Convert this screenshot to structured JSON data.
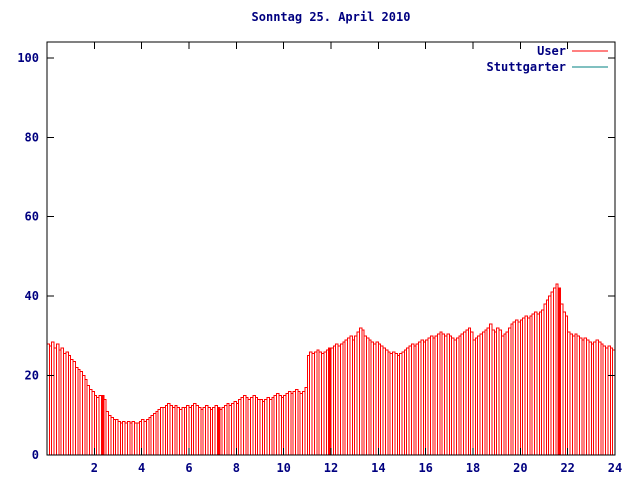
{
  "title": "Sonntag 25. April 2010",
  "colors": {
    "text": "#000080",
    "axis": "#000000",
    "user": "#ff0000",
    "stuttgarter": "#008080",
    "bar_fill": "#ffffff"
  },
  "legend": {
    "entries": [
      {
        "label": "User",
        "color": "#ff0000"
      },
      {
        "label": "Stuttgarter",
        "color": "#008080"
      }
    ],
    "position": "top-right"
  },
  "chart_data": {
    "type": "bar",
    "title": "Sonntag 25. April 2010",
    "xlabel": "",
    "ylabel": "",
    "xlim": [
      0,
      24
    ],
    "ylim": [
      0,
      104
    ],
    "xticks": [
      2,
      4,
      6,
      8,
      10,
      12,
      14,
      16,
      18,
      20,
      22,
      24
    ],
    "yticks": [
      0,
      20,
      40,
      60,
      80,
      100
    ],
    "grid": false,
    "legend_position": "top-right",
    "x_step": 0.1,
    "series": [
      {
        "name": "User",
        "color": "#ff0000",
        "x_start": 0,
        "highlight_indices": [
          23,
          72,
          119,
          216
        ],
        "values": [
          28,
          27.5,
          28.5,
          27,
          28,
          26.5,
          27,
          25.5,
          26,
          25,
          24,
          23.5,
          22,
          21.5,
          21,
          20,
          19,
          17.5,
          16.5,
          16,
          15,
          14.5,
          15,
          15,
          14,
          11,
          10,
          9.5,
          9,
          9,
          8.5,
          8,
          8.5,
          8,
          8.5,
          8,
          8.5,
          8,
          8,
          8.5,
          9,
          8.5,
          9,
          9.5,
          10,
          10.5,
          11,
          11.5,
          12,
          12,
          12.5,
          13,
          12.5,
          12,
          12.5,
          12,
          11.5,
          12,
          12,
          12.5,
          12,
          12.5,
          13,
          12.5,
          12,
          11.5,
          12,
          12.5,
          12,
          11.5,
          12,
          12.5,
          12,
          11.5,
          12,
          12.5,
          13,
          12.5,
          13,
          13.5,
          13,
          14,
          14.5,
          15,
          14.5,
          14,
          14.5,
          15,
          14.5,
          14,
          14,
          13.5,
          14,
          14.5,
          14,
          14.5,
          15,
          15.5,
          15,
          14.5,
          15,
          15.5,
          16,
          15.5,
          16,
          16.5,
          16,
          15.5,
          16,
          17,
          25,
          26,
          25.5,
          26,
          26.5,
          26,
          25.5,
          26,
          26.5,
          27,
          27,
          27.5,
          28,
          27.5,
          28,
          28.5,
          29,
          29.5,
          30,
          29,
          30,
          31,
          32,
          31.5,
          30,
          29.5,
          29,
          28.5,
          28,
          28.5,
          28,
          27.5,
          27,
          26.5,
          26,
          25.5,
          26,
          25.5,
          25,
          25.5,
          26,
          26.5,
          27,
          27.5,
          28,
          27.5,
          28,
          28.5,
          29,
          28.5,
          29,
          29.5,
          30,
          29.5,
          30,
          30.5,
          31,
          30.5,
          30,
          30.5,
          30,
          29.5,
          29,
          29.5,
          30,
          30.5,
          31,
          31.5,
          32,
          31,
          29,
          29.5,
          30,
          30.5,
          31,
          31.5,
          32,
          33,
          31.5,
          31,
          32,
          31.5,
          30,
          30.5,
          31,
          32,
          33,
          33.5,
          34,
          33.5,
          34,
          34.5,
          35,
          34.5,
          35,
          35.5,
          36,
          35.5,
          36,
          36.5,
          38,
          39,
          40,
          41,
          42,
          43,
          42,
          38,
          36,
          35,
          31,
          30.5,
          30,
          30.5,
          30,
          29.5,
          29,
          29.5,
          29,
          28.5,
          28,
          28.5,
          29,
          28.5,
          28,
          27.5,
          27,
          27.5,
          27,
          26.5
        ]
      },
      {
        "name": "Stuttgarter",
        "color": "#008080",
        "values": []
      }
    ]
  }
}
